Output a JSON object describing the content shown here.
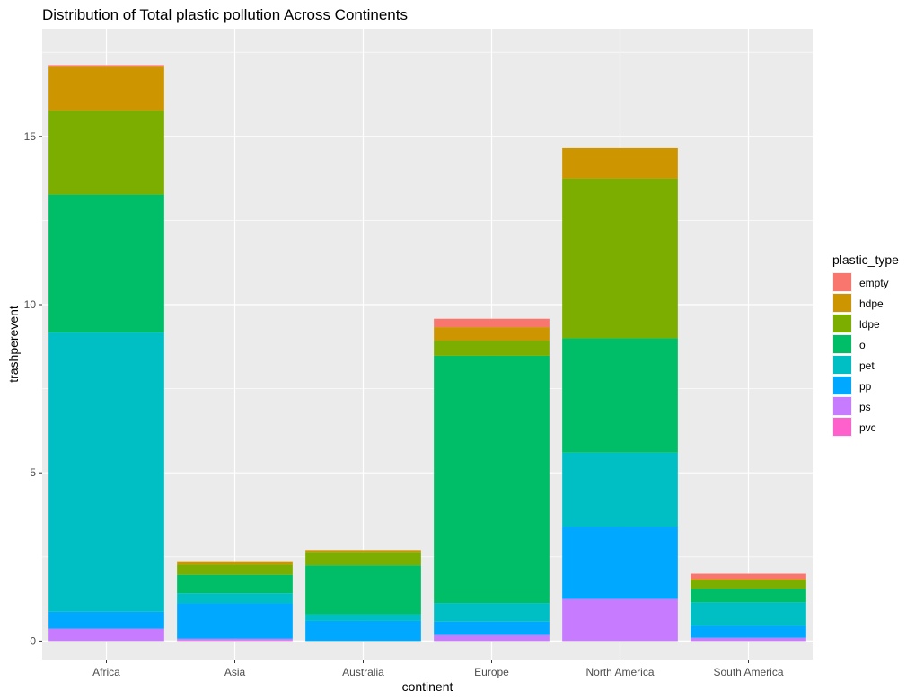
{
  "chart_data": {
    "type": "bar",
    "stacked": true,
    "title": "Distribution of Total plastic pollution Across Continents",
    "xlabel": "continent",
    "ylabel": "trashperevent",
    "ylim": [
      -0.55,
      18.2
    ],
    "yticks": [
      0,
      5,
      10,
      15
    ],
    "grid": true,
    "legend": {
      "title": "plastic_type",
      "position": "right"
    },
    "categories": [
      "Africa",
      "Asia",
      "Australia",
      "Europe",
      "North America",
      "South America"
    ],
    "series": [
      {
        "name": "empty",
        "color": "#F8766D",
        "values": [
          0.05,
          0.0,
          0.0,
          0.25,
          0.0,
          0.15
        ]
      },
      {
        "name": "hdpe",
        "color": "#CD9600",
        "values": [
          1.3,
          0.1,
          0.05,
          0.4,
          0.9,
          0.05
        ]
      },
      {
        "name": "ldpe",
        "color": "#7CAE00",
        "values": [
          2.5,
          0.3,
          0.4,
          0.45,
          4.75,
          0.25
        ]
      },
      {
        "name": "o",
        "color": "#00BE67",
        "values": [
          4.1,
          0.55,
          1.45,
          7.35,
          3.4,
          0.4
        ]
      },
      {
        "name": "pet",
        "color": "#00BFC4",
        "values": [
          8.3,
          0.3,
          0.2,
          0.55,
          2.2,
          0.7
        ]
      },
      {
        "name": "pp",
        "color": "#00A9FF",
        "values": [
          0.5,
          1.05,
          0.6,
          0.4,
          2.15,
          0.35
        ]
      },
      {
        "name": "ps",
        "color": "#C77CFF",
        "values": [
          0.37,
          0.05,
          0.0,
          0.18,
          1.25,
          0.1
        ]
      },
      {
        "name": "pvc",
        "color": "#FF61CC",
        "values": [
          0.0,
          0.02,
          0.0,
          0.0,
          0.0,
          0.0
        ]
      }
    ]
  }
}
